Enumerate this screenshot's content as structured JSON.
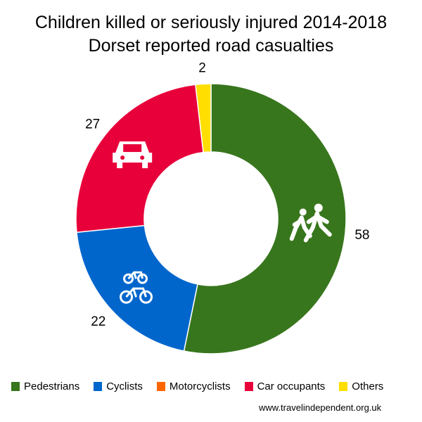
{
  "chart_data": {
    "type": "pie",
    "donut": true,
    "title": "Children killed or seriously injured 2014-2018",
    "subtitle": "Dorset reported road casualties",
    "categories": [
      "Pedestrians",
      "Cyclists",
      "Motorcyclists",
      "Car occupants",
      "Others"
    ],
    "values": [
      58,
      22,
      0,
      27,
      2
    ],
    "colors": [
      "#38761d",
      "#0066cc",
      "#ff6600",
      "#e8003a",
      "#ffde00"
    ],
    "data_labels": [
      "58",
      "22",
      "",
      "27",
      "2"
    ],
    "icons": [
      "pedestrians-icon",
      "bicycles-icon",
      "",
      "car-icon",
      ""
    ],
    "legend_position": "bottom"
  },
  "source": "www.travelindependent.org.uk"
}
